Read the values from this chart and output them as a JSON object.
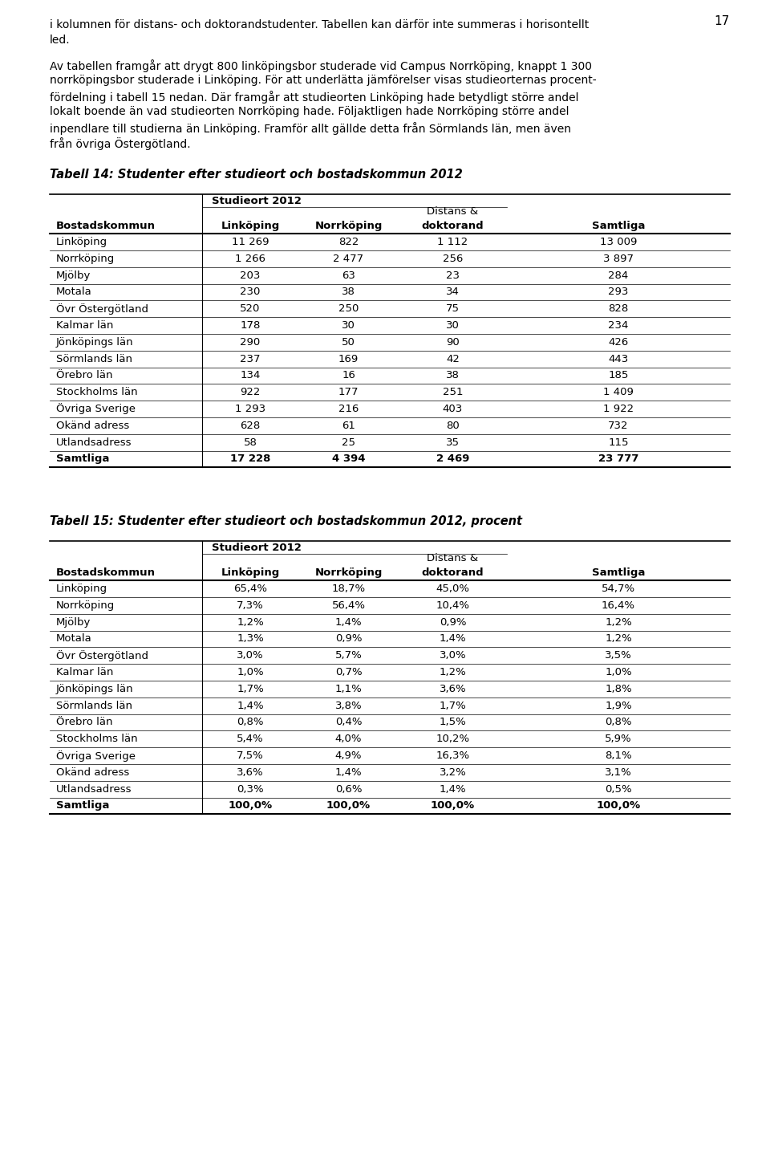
{
  "page_number": "17",
  "intro_para1": [
    "i kolumnen för distans- och doktorandstudenter. Tabellen kan därför inte summeras i horisontellt",
    "led."
  ],
  "intro_para2": [
    "Av tabellen framgår att drygt 800 linköpingsbor studerade vid Campus Norrköping, knappt 1 300",
    "norrköpingsbor studerade i Linköping. För att underlätta jämförelser visas studieorternas procent-",
    "fördelning i tabell 15 nedan. Där framgår att studieorten Linköping hade betydligt större andel",
    "lokalt boende än vad studieorten Norrköping hade. Följaktligen hade Norrköping större andel",
    "inpendlare till studierna än Linköping. Framför allt gällde detta från Sörmlands län, men även",
    "från övriga Östergötland."
  ],
  "table14_title": "Tabell 14: Studenter efter studieort och bostadskommun 2012",
  "table14_rows": [
    [
      "Linköping",
      "11 269",
      "822",
      "1 112",
      "13 009"
    ],
    [
      "Norrköping",
      "1 266",
      "2 477",
      "256",
      "3 897"
    ],
    [
      "Mjölby",
      "203",
      "63",
      "23",
      "284"
    ],
    [
      "Motala",
      "230",
      "38",
      "34",
      "293"
    ],
    [
      "Övr Östergötland",
      "520",
      "250",
      "75",
      "828"
    ],
    [
      "Kalmar län",
      "178",
      "30",
      "30",
      "234"
    ],
    [
      "Jönköpings län",
      "290",
      "50",
      "90",
      "426"
    ],
    [
      "Sörmlands län",
      "237",
      "169",
      "42",
      "443"
    ],
    [
      "Örebro län",
      "134",
      "16",
      "38",
      "185"
    ],
    [
      "Stockholms län",
      "922",
      "177",
      "251",
      "1 409"
    ],
    [
      "Övriga Sverige",
      "1 293",
      "216",
      "403",
      "1 922"
    ],
    [
      "Okänd adress",
      "628",
      "61",
      "80",
      "732"
    ],
    [
      "Utlandsadress",
      "58",
      "25",
      "35",
      "115"
    ],
    [
      "Samtliga",
      "17 228",
      "4 394",
      "2 469",
      "23 777"
    ]
  ],
  "table15_title": "Tabell 15: Studenter efter studieort och bostadskommun 2012, procent",
  "table15_rows": [
    [
      "Linköping",
      "65,4%",
      "18,7%",
      "45,0%",
      "54,7%"
    ],
    [
      "Norrköping",
      "7,3%",
      "56,4%",
      "10,4%",
      "16,4%"
    ],
    [
      "Mjölby",
      "1,2%",
      "1,4%",
      "0,9%",
      "1,2%"
    ],
    [
      "Motala",
      "1,3%",
      "0,9%",
      "1,4%",
      "1,2%"
    ],
    [
      "Övr Östergötland",
      "3,0%",
      "5,7%",
      "3,0%",
      "3,5%"
    ],
    [
      "Kalmar län",
      "1,0%",
      "0,7%",
      "1,2%",
      "1,0%"
    ],
    [
      "Jönköpings län",
      "1,7%",
      "1,1%",
      "3,6%",
      "1,8%"
    ],
    [
      "Sörmlands län",
      "1,4%",
      "3,8%",
      "1,7%",
      "1,9%"
    ],
    [
      "Örebro län",
      "0,8%",
      "0,4%",
      "1,5%",
      "0,8%"
    ],
    [
      "Stockholms län",
      "5,4%",
      "4,0%",
      "10,2%",
      "5,9%"
    ],
    [
      "Övriga Sverige",
      "7,5%",
      "4,9%",
      "16,3%",
      "8,1%"
    ],
    [
      "Okänd adress",
      "3,6%",
      "1,4%",
      "3,2%",
      "3,1%"
    ],
    [
      "Utlandsadress",
      "0,3%",
      "0,6%",
      "1,4%",
      "0,5%"
    ],
    [
      "Samtliga",
      "100,0%",
      "100,0%",
      "100,0%",
      "100,0%"
    ]
  ],
  "bg_color": "#ffffff",
  "text_color": "#000000",
  "font_size_body": 10.0,
  "font_size_title": 10.5,
  "font_size_page": 11,
  "font_size_table": 9.5
}
